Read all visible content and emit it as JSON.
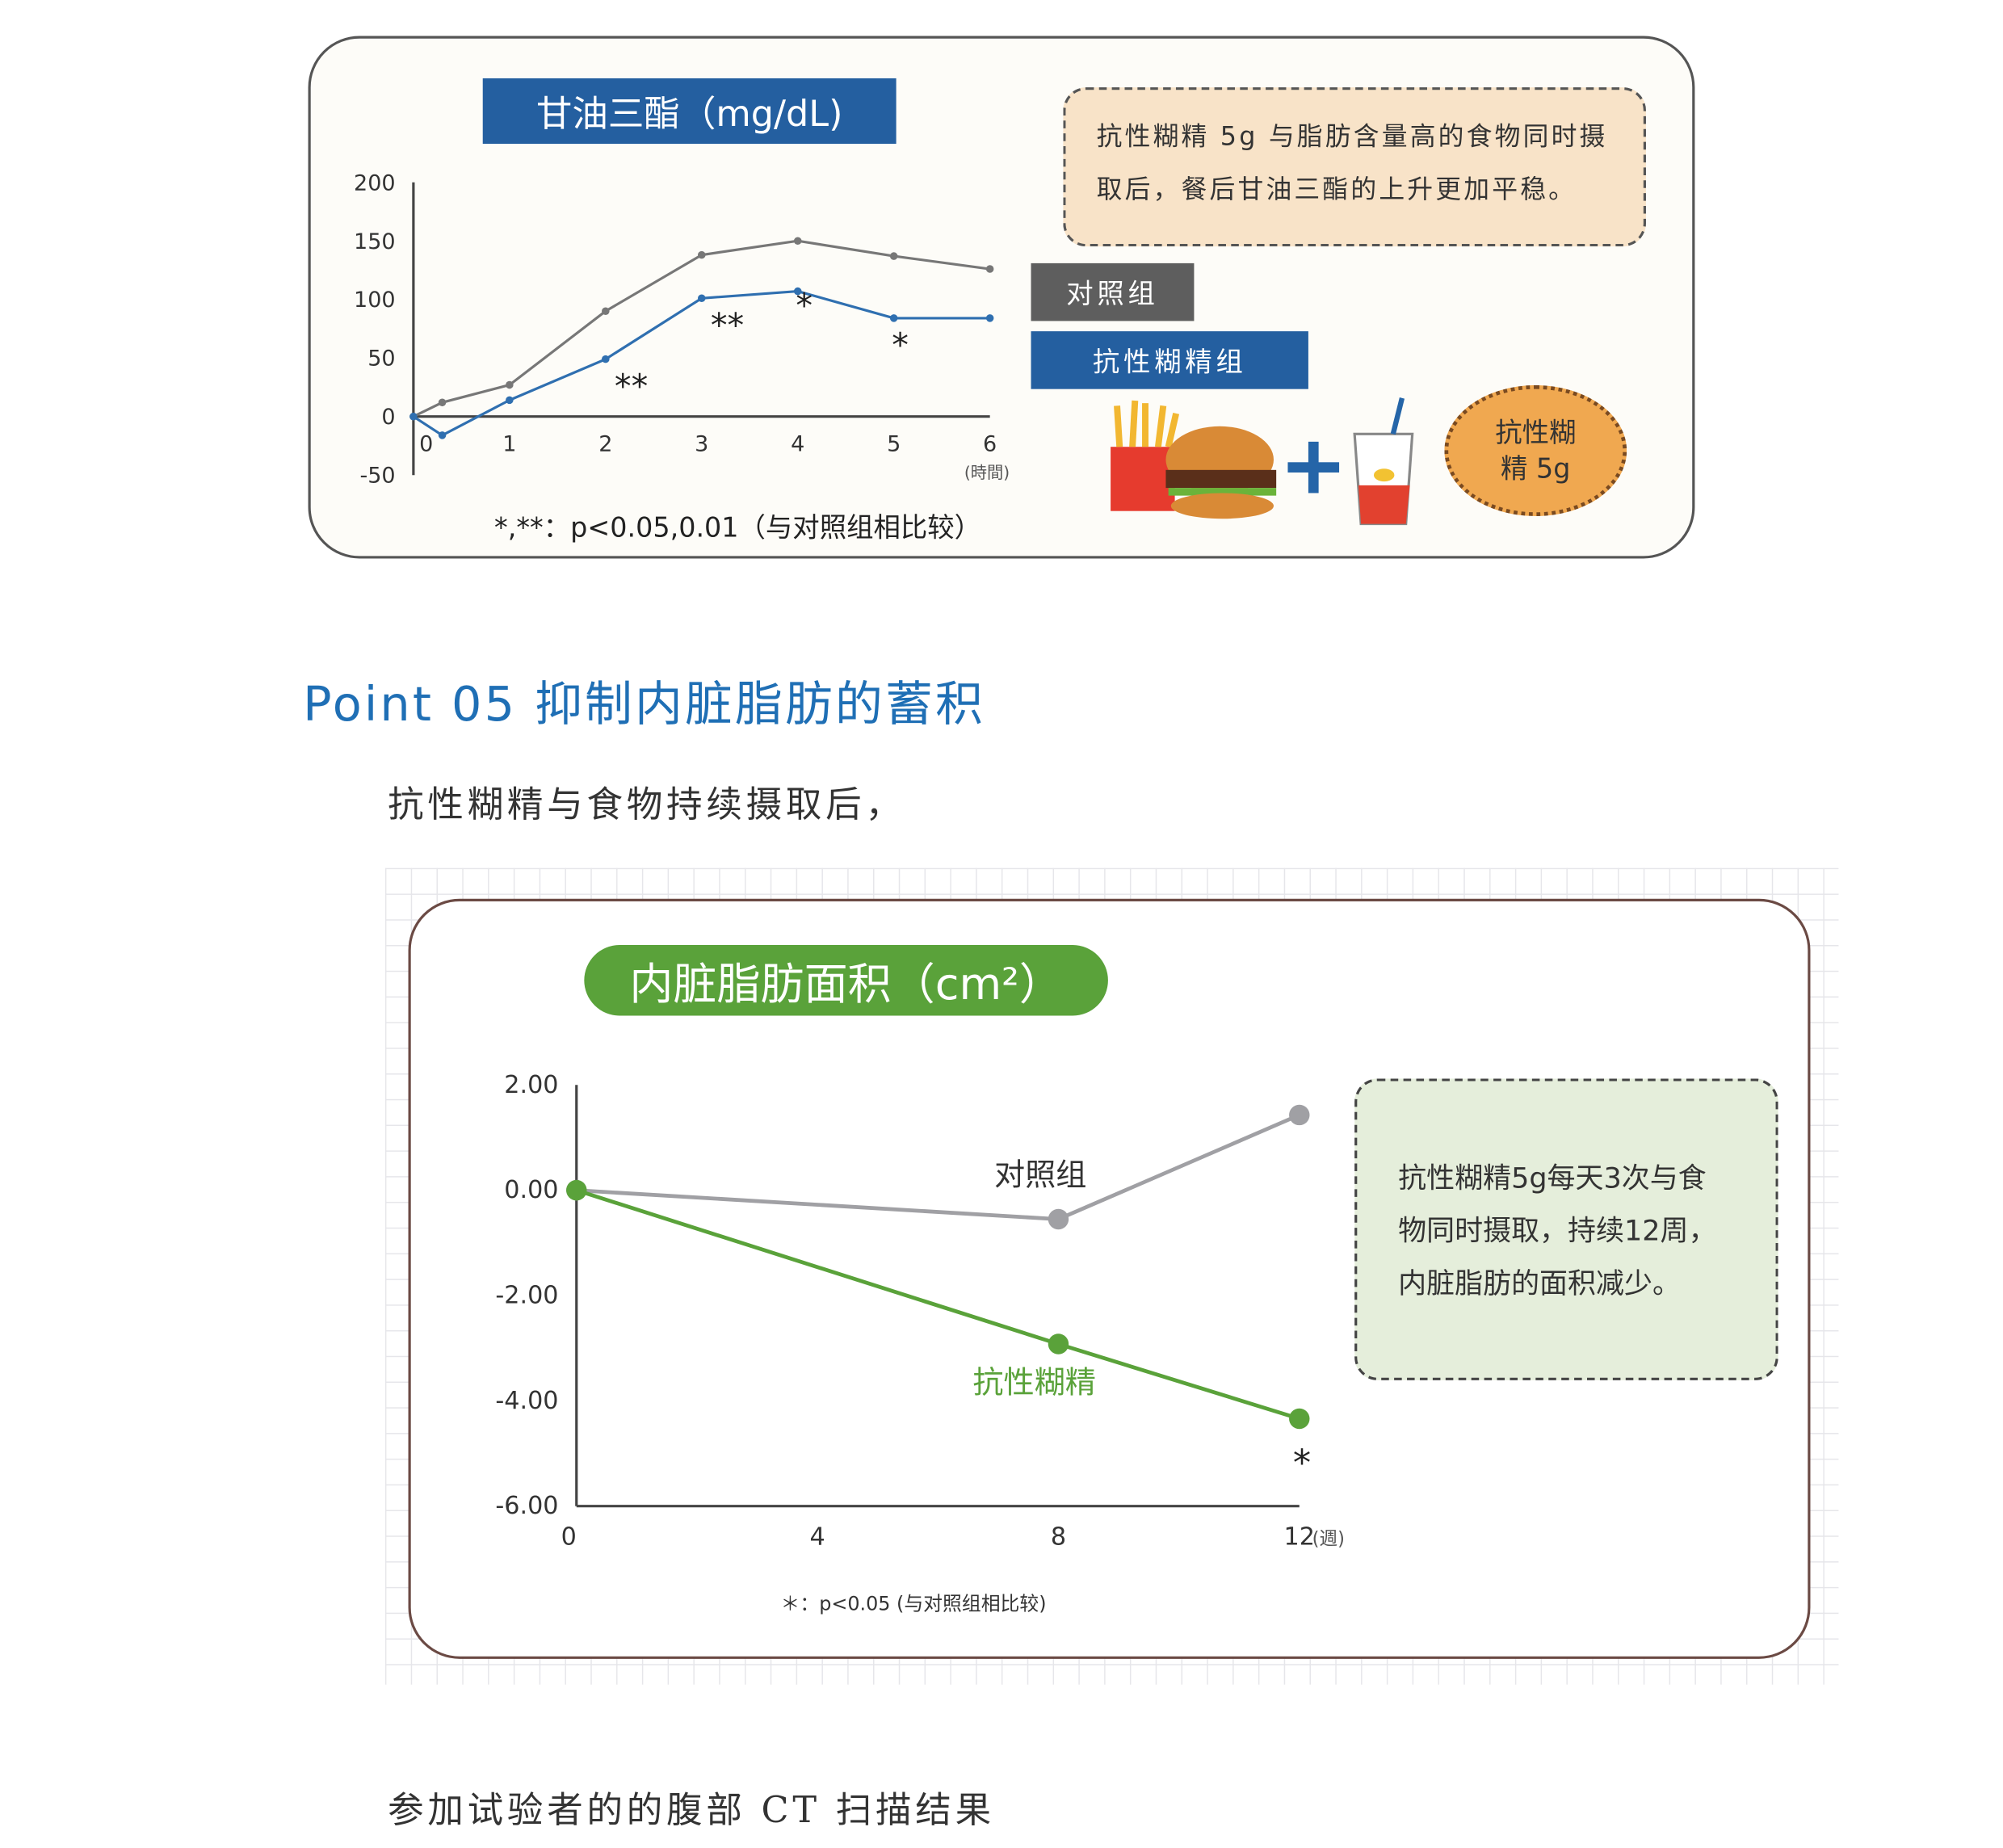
{
  "chart1": {
    "title": "甘油三酯（mg/dL)",
    "callout": "抗性糊精 5g 与脂肪含量高的食物同时摄取后，餐后甘油三酯的上升更加平稳。",
    "legend": {
      "control": "对照组",
      "resistant": "抗性糊精组"
    },
    "cookie_line1": "抗性糊",
    "cookie_line2": "精 5g",
    "footnote": "*,**：p<0.05,0.01（与对照组相比较）",
    "icons": [
      "fries-icon",
      "hamburger-icon",
      "plus-icon",
      "drink-icon",
      "cookie-icon"
    ]
  },
  "section": {
    "heading": "Point 05 抑制内脏脂肪的蓄积",
    "intro": "抗性糊精与食物持续摄取后，",
    "bottom": "参加试验者的的腹部 CT 扫描结果"
  },
  "chart2": {
    "title": "内脏脂肪面积（cm²）",
    "callout_lines": [
      "抗性糊精5g每天3次与食",
      "物同时摄取，持续12周，",
      "内脏脂肪的面积减少。"
    ],
    "footnote": "＊：p<0.05 (与对照组相比较)"
  },
  "chart_data": [
    {
      "type": "line",
      "title": "甘油三酯（mg/dL)",
      "xlabel": "(時間)",
      "ylim": [
        -50,
        200
      ],
      "xlim": [
        0,
        6
      ],
      "yticks": [
        "200",
        "150",
        "100",
        "50",
        "0",
        "-50"
      ],
      "xticks": [
        "0",
        "1",
        "2",
        "3",
        "4",
        "5",
        "6"
      ],
      "x": [
        0,
        0.3,
        1,
        2,
        3,
        4,
        5,
        6
      ],
      "series": [
        {
          "name": "对照组",
          "color": "#777777",
          "values": [
            0,
            12,
            27,
            90,
            138,
            150,
            137,
            126
          ]
        },
        {
          "name": "抗性糊精组",
          "color": "#2f6fb0",
          "values": [
            0,
            -16,
            14,
            49,
            101,
            107,
            84,
            84
          ]
        }
      ],
      "annotations": [
        {
          "x": 2,
          "text": "**"
        },
        {
          "x": 3,
          "text": "**"
        },
        {
          "x": 4,
          "text": "*"
        },
        {
          "x": 5,
          "text": "*"
        }
      ]
    },
    {
      "type": "line",
      "title": "内脏脂肪面积（cm²）",
      "xlabel": "(週)",
      "ylim": [
        -6,
        2
      ],
      "xlim": [
        0,
        12
      ],
      "yticks": [
        "2.00",
        "0.00",
        "-2.00",
        "-4.00",
        "-6.00"
      ],
      "xticks": [
        "0",
        "4",
        "8",
        "12"
      ],
      "x": [
        0,
        8,
        12
      ],
      "series": [
        {
          "name": "对照组",
          "color": "#a0a0a4",
          "values": [
            0,
            -0.55,
            1.43
          ]
        },
        {
          "name": "抗性糊精",
          "color": "#5aa23a",
          "values": [
            0,
            -2.92,
            -4.34
          ]
        }
      ],
      "annotations": [
        {
          "x": 12,
          "text": "*"
        }
      ]
    }
  ]
}
